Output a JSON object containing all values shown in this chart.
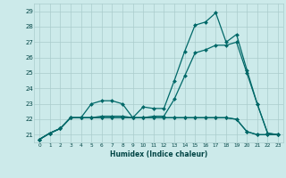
{
  "xlabel": "Humidex (Indice chaleur)",
  "xlim_min": -0.5,
  "xlim_max": 23.5,
  "ylim_min": 20.5,
  "ylim_max": 29.5,
  "bg_color": "#cceaea",
  "grid_color": "#aacccc",
  "line_color": "#006868",
  "x": [
    0,
    1,
    2,
    3,
    4,
    5,
    6,
    7,
    8,
    9,
    10,
    11,
    12,
    13,
    14,
    15,
    16,
    17,
    18,
    19,
    20,
    21,
    22,
    23
  ],
  "line1_y": [
    20.7,
    21.1,
    21.4,
    22.1,
    22.1,
    22.1,
    22.1,
    22.1,
    22.1,
    22.1,
    22.1,
    22.1,
    22.1,
    22.1,
    22.1,
    22.1,
    22.1,
    22.1,
    22.1,
    22.0,
    21.2,
    21.0,
    21.0,
    21.0
  ],
  "line2_y": [
    20.7,
    21.1,
    21.4,
    22.1,
    22.1,
    23.0,
    23.2,
    23.2,
    23.0,
    22.1,
    22.8,
    22.7,
    22.7,
    24.5,
    26.4,
    28.1,
    28.3,
    28.9,
    27.0,
    27.5,
    25.2,
    23.0,
    21.1,
    21.0
  ],
  "line3_y": [
    20.7,
    21.1,
    21.4,
    22.1,
    22.1,
    22.1,
    22.2,
    22.2,
    22.2,
    22.1,
    22.1,
    22.2,
    22.2,
    23.3,
    24.8,
    26.3,
    26.5,
    26.8,
    26.8,
    27.0,
    25.0,
    23.0,
    21.1,
    21.0
  ],
  "line4_y": [
    20.7,
    21.1,
    21.4,
    22.1,
    22.1,
    22.1,
    22.1,
    22.1,
    22.1,
    22.1,
    22.1,
    22.1,
    22.1,
    22.1,
    22.1,
    22.1,
    22.1,
    22.1,
    22.1,
    22.0,
    21.2,
    21.0,
    21.0,
    21.0
  ],
  "xtick_vals": [
    0,
    1,
    2,
    3,
    4,
    5,
    6,
    7,
    8,
    9,
    10,
    11,
    12,
    13,
    14,
    15,
    16,
    17,
    18,
    19,
    20,
    21,
    22,
    23
  ],
  "xtick_labels": [
    "0",
    "1",
    "2",
    "3",
    "4",
    "5",
    "6",
    "7",
    "8",
    "9",
    "10",
    "11",
    "12",
    "13",
    "14",
    "15",
    "16",
    "17",
    "18",
    "19",
    "20",
    "21",
    "22",
    "23"
  ],
  "ytick_vals": [
    21,
    22,
    23,
    24,
    25,
    26,
    27,
    28,
    29
  ],
  "ytick_labels": [
    "21",
    "22",
    "23",
    "24",
    "25",
    "26",
    "27",
    "28",
    "29"
  ],
  "font_color": "#004444"
}
